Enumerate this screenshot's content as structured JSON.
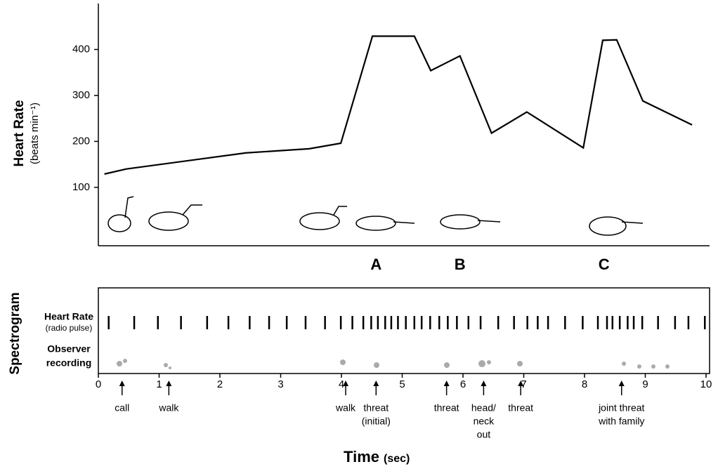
{
  "chart_data": {
    "type": "line",
    "y_label": "Heart Rate",
    "y_unit": "(beats min⁻¹)",
    "x_label": "Time",
    "x_unit": "(sec)",
    "x": [
      0.1,
      0.46,
      2.43,
      3.47,
      3.99,
      4.51,
      5.2,
      5.47,
      5.95,
      6.47,
      7.05,
      7.98,
      8.3,
      8.53,
      8.96,
      9.77
    ],
    "values": [
      129,
      140,
      175,
      184,
      196,
      429,
      429,
      354,
      386,
      218,
      264,
      186,
      420,
      421,
      288,
      236
    ],
    "color": "#000000",
    "ylim": [
      -27,
      500
    ],
    "yticks": [
      100,
      200,
      300,
      400
    ],
    "xlim": [
      0,
      10
    ],
    "xticks": [
      0,
      1,
      2,
      3,
      4,
      5,
      6,
      7,
      8,
      9,
      10
    ],
    "phases": [
      {
        "label": "A",
        "x": 4.57
      },
      {
        "label": "B",
        "x": 5.95
      },
      {
        "label": "C",
        "x": 8.32
      }
    ],
    "spectrogram": {
      "title": "Spectrogram",
      "rows": [
        [
          "Heart Rate",
          "(radio pulse)"
        ],
        [
          "Observer",
          "recording"
        ]
      ],
      "pulses": [
        0.17,
        0.59,
        0.98,
        1.36,
        1.79,
        2.14,
        2.49,
        2.81,
        3.1,
        3.41,
        3.73,
        3.99,
        4.18,
        4.36,
        4.49,
        4.6,
        4.72,
        4.82,
        4.93,
        5.06,
        5.2,
        5.32,
        5.46,
        5.61,
        5.75,
        5.9,
        6.09,
        6.29,
        6.58,
        6.84,
        7.06,
        7.23,
        7.4,
        7.68,
        7.97,
        8.22,
        8.37,
        8.46,
        8.58,
        8.71,
        8.81,
        8.95,
        9.21,
        9.49,
        9.71,
        9.98
      ],
      "events": [
        {
          "label": [
            "call"
          ],
          "x": 0.39
        },
        {
          "label": [
            "walk"
          ],
          "x": 1.16
        },
        {
          "label": [
            "walk"
          ],
          "x": 4.07
        },
        {
          "label": [
            "threat",
            "(initial)"
          ],
          "x": 4.57
        },
        {
          "label": [
            "threat"
          ],
          "x": 5.73
        },
        {
          "label": [
            "head/",
            "neck",
            "out"
          ],
          "x": 6.34
        },
        {
          "label": [
            "threat"
          ],
          "x": 6.95
        },
        {
          "label": [
            "joint threat",
            "with family"
          ],
          "x": 8.61
        }
      ]
    }
  }
}
